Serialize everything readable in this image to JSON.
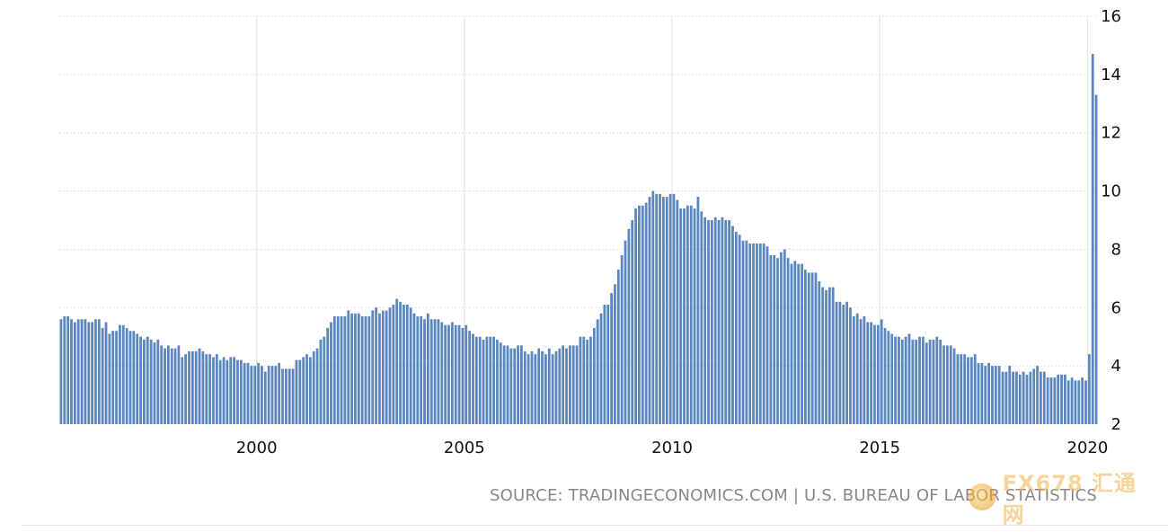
{
  "source": "SOURCE: TRADINGECONOMICS.COM | U.S. BUREAU OF LABOR STATISTICS",
  "watermark": "FX678 汇通网",
  "colors": {
    "bar": "#5b86bf",
    "grid": "#e2e2e2",
    "tick": "#111111"
  },
  "chart_data": {
    "type": "bar",
    "xlabel": "",
    "ylabel": "",
    "ylim": [
      2,
      16
    ],
    "yticks": [
      2,
      4,
      6,
      8,
      10,
      12,
      14,
      16
    ],
    "xticks": [
      2000,
      2005,
      2010,
      2015,
      2020
    ],
    "grid": true,
    "legend": "none",
    "start_year": 1995,
    "start_month": 4,
    "y_axis_position": "right",
    "series": [
      {
        "values": [
          5.6,
          5.7,
          5.7,
          5.6,
          5.5,
          5.6,
          5.6,
          5.6,
          5.5,
          5.5,
          5.6,
          5.6,
          5.3,
          5.5,
          5.1,
          5.2,
          5.2,
          5.4,
          5.4,
          5.3,
          5.2,
          5.2,
          5.1,
          5.0,
          4.9,
          5.0,
          4.9,
          4.8,
          4.9,
          4.7,
          4.6,
          4.7,
          4.6,
          4.6,
          4.7,
          4.3,
          4.4,
          4.5,
          4.5,
          4.5,
          4.6,
          4.5,
          4.4,
          4.4,
          4.3,
          4.4,
          4.2,
          4.3,
          4.2,
          4.3,
          4.3,
          4.2,
          4.2,
          4.1,
          4.1,
          4.0,
          4.0,
          4.1,
          4.0,
          3.8,
          4.0,
          4.0,
          4.0,
          4.1,
          3.9,
          3.9,
          3.9,
          3.9,
          4.2,
          4.2,
          4.3,
          4.4,
          4.3,
          4.5,
          4.6,
          4.9,
          5.0,
          5.3,
          5.5,
          5.7,
          5.7,
          5.7,
          5.7,
          5.9,
          5.8,
          5.8,
          5.8,
          5.7,
          5.7,
          5.7,
          5.9,
          6.0,
          5.8,
          5.9,
          5.9,
          6.0,
          6.1,
          6.3,
          6.2,
          6.1,
          6.1,
          6.0,
          5.8,
          5.7,
          5.7,
          5.6,
          5.8,
          5.6,
          5.6,
          5.6,
          5.5,
          5.4,
          5.4,
          5.5,
          5.4,
          5.4,
          5.3,
          5.4,
          5.2,
          5.1,
          5.0,
          5.0,
          4.9,
          5.0,
          5.0,
          5.0,
          4.9,
          4.8,
          4.7,
          4.7,
          4.6,
          4.6,
          4.7,
          4.7,
          4.5,
          4.4,
          4.5,
          4.4,
          4.6,
          4.5,
          4.4,
          4.6,
          4.4,
          4.5,
          4.6,
          4.7,
          4.6,
          4.7,
          4.7,
          4.7,
          5.0,
          5.0,
          4.9,
          5.0,
          5.3,
          5.6,
          5.8,
          6.1,
          6.1,
          6.5,
          6.8,
          7.3,
          7.8,
          8.3,
          8.7,
          9.0,
          9.4,
          9.5,
          9.5,
          9.6,
          9.8,
          10.0,
          9.9,
          9.9,
          9.8,
          9.8,
          9.9,
          9.9,
          9.7,
          9.4,
          9.4,
          9.5,
          9.5,
          9.4,
          9.8,
          9.3,
          9.1,
          9.0,
          9.0,
          9.1,
          9.0,
          9.1,
          9.0,
          9.0,
          8.8,
          8.6,
          8.5,
          8.3,
          8.3,
          8.2,
          8.2,
          8.2,
          8.2,
          8.2,
          8.1,
          7.8,
          7.8,
          7.7,
          7.9,
          8.0,
          7.7,
          7.5,
          7.6,
          7.5,
          7.5,
          7.3,
          7.2,
          7.2,
          7.2,
          6.9,
          6.7,
          6.6,
          6.7,
          6.7,
          6.2,
          6.2,
          6.1,
          6.2,
          6.0,
          5.7,
          5.8,
          5.6,
          5.7,
          5.5,
          5.5,
          5.4,
          5.4,
          5.6,
          5.3,
          5.2,
          5.1,
          5.0,
          5.0,
          4.9,
          5.0,
          5.1,
          4.9,
          4.9,
          5.0,
          5.0,
          4.8,
          4.9,
          4.9,
          5.0,
          4.9,
          4.7,
          4.7,
          4.7,
          4.6,
          4.4,
          4.4,
          4.4,
          4.3,
          4.3,
          4.4,
          4.1,
          4.1,
          4.0,
          4.1,
          4.0,
          4.0,
          4.0,
          3.8,
          3.8,
          4.0,
          3.8,
          3.8,
          3.7,
          3.8,
          3.7,
          3.8,
          3.9,
          4.0,
          3.8,
          3.8,
          3.6,
          3.6,
          3.6,
          3.7,
          3.7,
          3.7,
          3.5,
          3.6,
          3.5,
          3.5,
          3.6,
          3.5,
          4.4,
          14.7,
          13.3
        ]
      }
    ]
  }
}
